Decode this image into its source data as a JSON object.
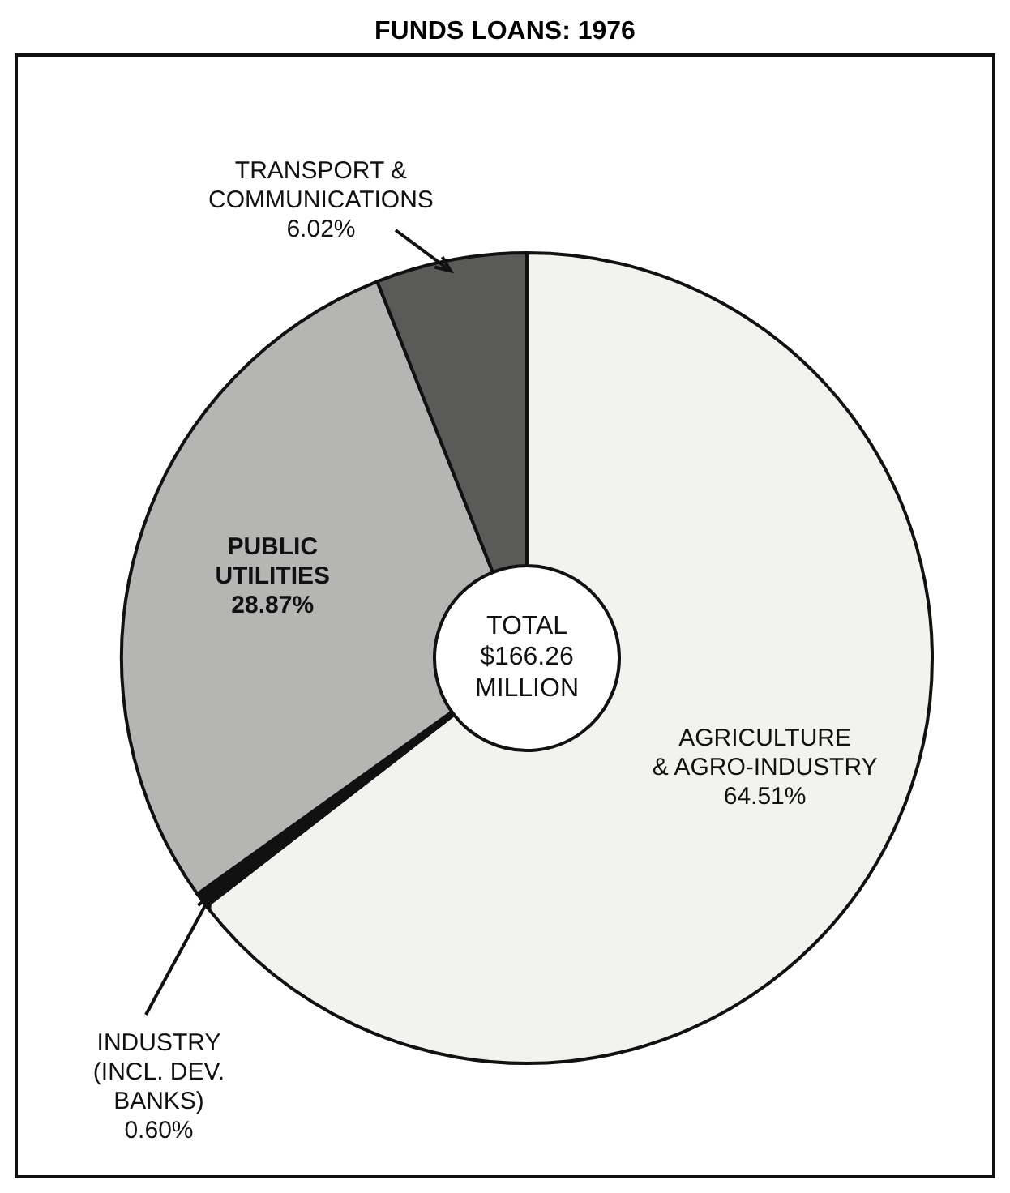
{
  "chart_data": {
    "type": "donut",
    "title": "FUNDS LOANS: 1976",
    "categories": [
      "AGRICULTURE\n& AGRO-INDUSTRY",
      "INDUSTRY\n(INCL. DEV.\nBANKS)",
      "PUBLIC\nUTILITIES",
      "TRANSPORT &\nCOMMUNICATIONS"
    ],
    "values": [
      64.51,
      0.6,
      28.87,
      6.02
    ],
    "colors": [
      "#f2f2ef",
      "#111111",
      "#b5b5b3",
      "#5a5a58"
    ],
    "value_labels": [
      "64.51%",
      "0.60%",
      "28.87%",
      "6.02%"
    ],
    "annotations": [
      "TOTAL\n$166.26\nMILLION"
    ]
  }
}
